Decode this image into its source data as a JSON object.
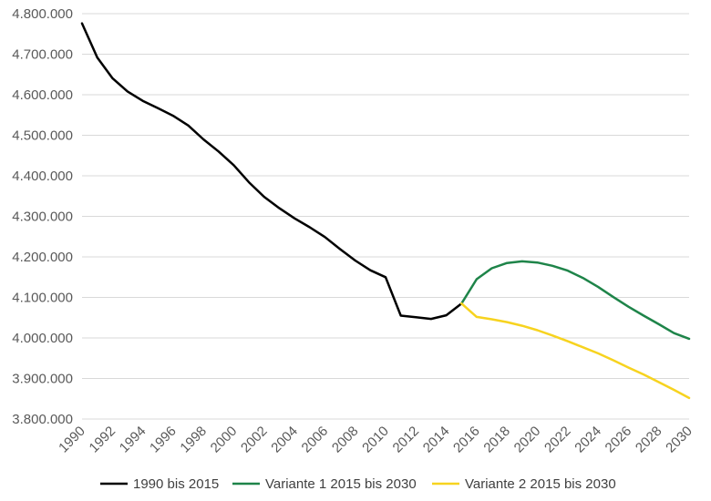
{
  "chart_data": {
    "type": "line",
    "title": "",
    "xlabel": "",
    "ylabel": "",
    "xlim": [
      1990,
      2030
    ],
    "ylim": [
      3800000,
      4800000
    ],
    "y_ticks": [
      {
        "value": 4800000,
        "label": "4.800.000"
      },
      {
        "value": 4700000,
        "label": "4.700.000"
      },
      {
        "value": 4600000,
        "label": "4.600.000"
      },
      {
        "value": 4500000,
        "label": "4.500.000"
      },
      {
        "value": 4400000,
        "label": "4.400.000"
      },
      {
        "value": 4300000,
        "label": "4.300.000"
      },
      {
        "value": 4200000,
        "label": "4.200.000"
      },
      {
        "value": 4100000,
        "label": "4.100.000"
      },
      {
        "value": 4000000,
        "label": "4.000.000"
      },
      {
        "value": 3900000,
        "label": "3.900.000"
      },
      {
        "value": 3800000,
        "label": "3.800.000"
      }
    ],
    "x_ticks": [
      {
        "value": 1990,
        "label": "1990"
      },
      {
        "value": 1992,
        "label": "1992"
      },
      {
        "value": 1994,
        "label": "1994"
      },
      {
        "value": 1996,
        "label": "1996"
      },
      {
        "value": 1998,
        "label": "1998"
      },
      {
        "value": 2000,
        "label": "2000"
      },
      {
        "value": 2002,
        "label": "2002"
      },
      {
        "value": 2004,
        "label": "2004"
      },
      {
        "value": 2006,
        "label": "2006"
      },
      {
        "value": 2008,
        "label": "2008"
      },
      {
        "value": 2010,
        "label": "2010"
      },
      {
        "value": 2012,
        "label": "2012"
      },
      {
        "value": 2014,
        "label": "2014"
      },
      {
        "value": 2016,
        "label": "2016"
      },
      {
        "value": 2018,
        "label": "2018"
      },
      {
        "value": 2020,
        "label": "2020"
      },
      {
        "value": 2022,
        "label": "2022"
      },
      {
        "value": 2024,
        "label": "2024"
      },
      {
        "value": 2026,
        "label": "2026"
      },
      {
        "value": 2028,
        "label": "2028"
      },
      {
        "value": 2030,
        "label": "2030"
      }
    ],
    "grid": "horizontal",
    "legend_position": "bottom",
    "series": [
      {
        "name": "1990 bis 2015",
        "color": "#000000",
        "x": [
          1990,
          1991,
          1992,
          1993,
          1994,
          1995,
          1996,
          1997,
          1998,
          1999,
          2000,
          2001,
          2002,
          2003,
          2004,
          2005,
          2006,
          2007,
          2008,
          2009,
          2010,
          2011,
          2012,
          2013,
          2014,
          2015
        ],
        "y": [
          4776000,
          4692000,
          4641000,
          4608000,
          4585000,
          4567000,
          4548000,
          4524000,
          4490000,
          4460000,
          4426000,
          4384000,
          4348000,
          4320000,
          4295000,
          4273000,
          4249000,
          4219000,
          4191000,
          4167000,
          4150000,
          4055000,
          4051000,
          4047000,
          4056000,
          4085000
        ]
      },
      {
        "name": "Variante 1 2015 bis 2030",
        "color": "#1E8449",
        "x": [
          2015,
          2016,
          2017,
          2018,
          2019,
          2020,
          2021,
          2022,
          2023,
          2024,
          2025,
          2026,
          2027,
          2028,
          2029,
          2030
        ],
        "y": [
          4085000,
          4145000,
          4172000,
          4185000,
          4189000,
          4186000,
          4178000,
          4166000,
          4148000,
          4126000,
          4101000,
          4077000,
          4055000,
          4034000,
          4012000,
          3998000
        ]
      },
      {
        "name": "Variante 2 2015 bis 2030",
        "color": "#F7D31F",
        "x": [
          2015,
          2016,
          2017,
          2018,
          2019,
          2020,
          2021,
          2022,
          2023,
          2024,
          2025,
          2026,
          2027,
          2028,
          2029,
          2030
        ],
        "y": [
          4085000,
          4052000,
          4046000,
          4039000,
          4030000,
          4019000,
          4006000,
          3992000,
          3977000,
          3962000,
          3945000,
          3927000,
          3910000,
          3891000,
          3872000,
          3852000
        ]
      }
    ]
  }
}
